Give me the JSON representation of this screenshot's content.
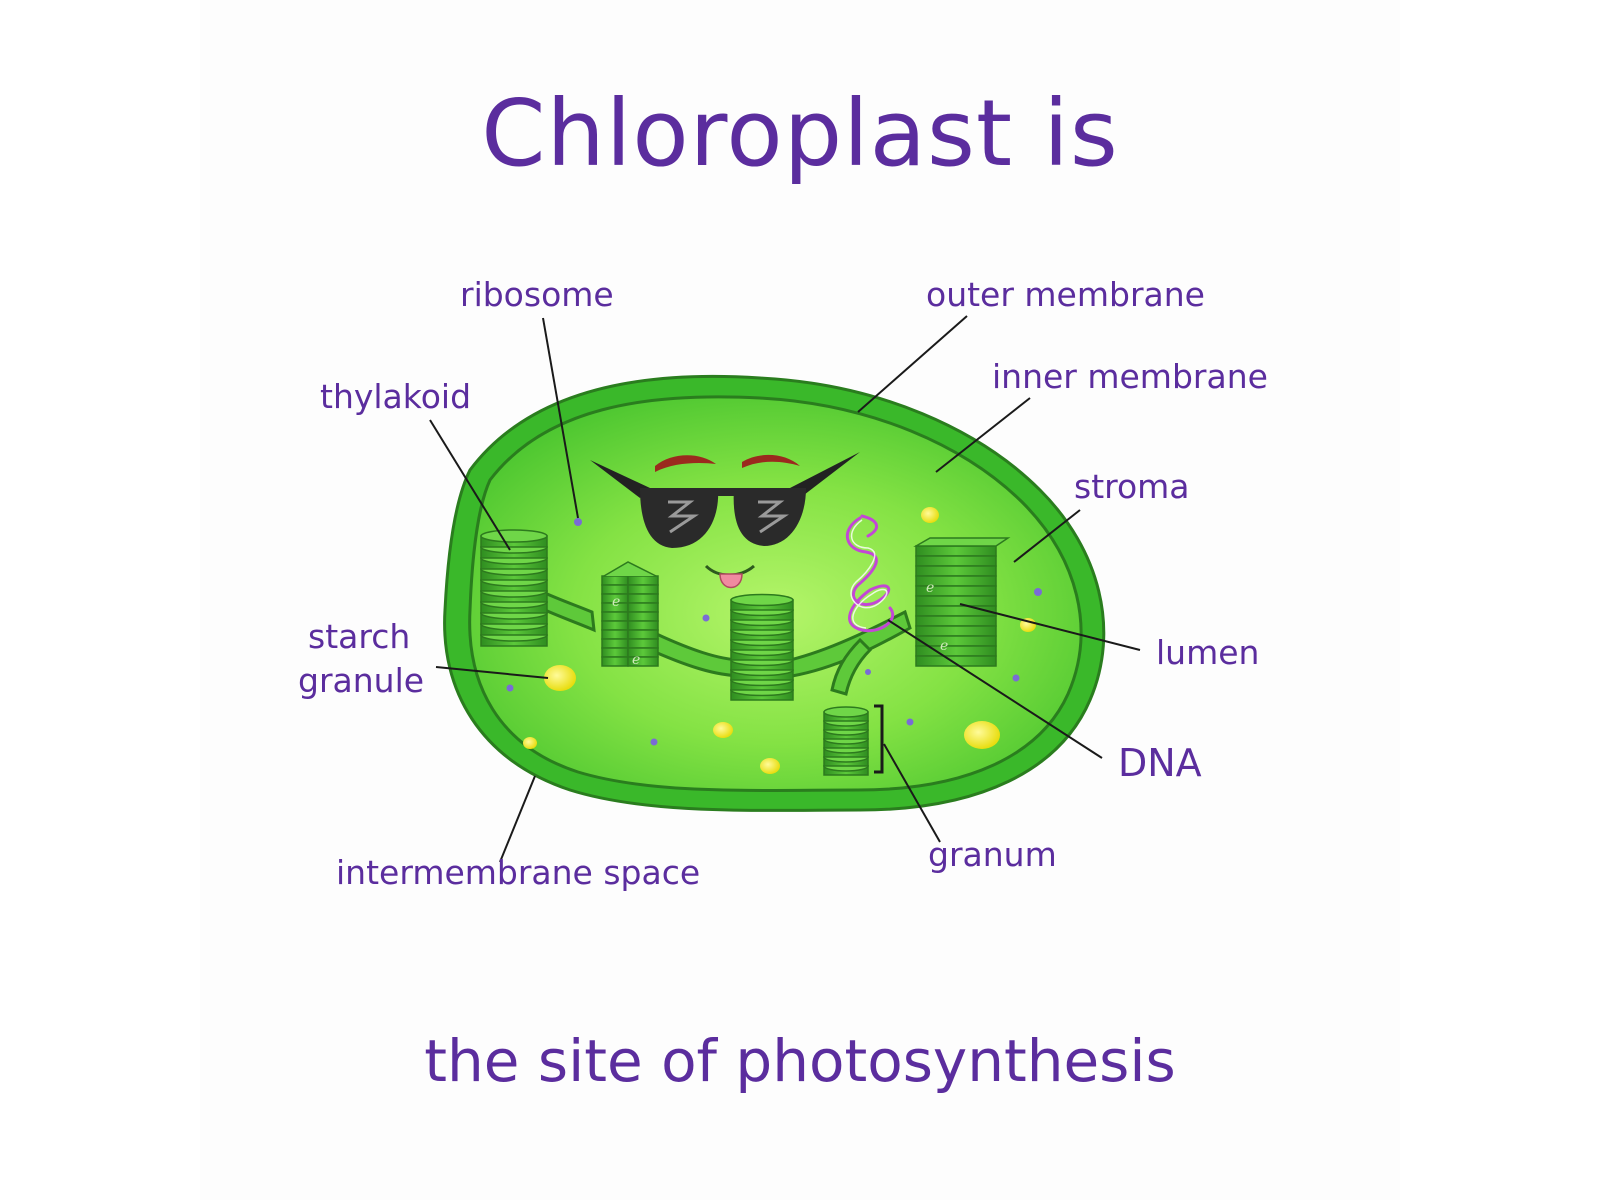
{
  "title": "Chloroplast is",
  "subtitle": "the site of photosynthesis",
  "labels": {
    "ribosome": "ribosome",
    "outer_membrane": "outer membrane",
    "inner_membrane": "inner membrane",
    "thylakoid": "thylakoid",
    "stroma": "stroma",
    "starch_granule_line1": "starch",
    "starch_granule_line2": "granule",
    "lumen": "lumen",
    "dna": "DNA",
    "granum": "granum",
    "intermembrane_space": "intermembrane space"
  },
  "thylakoid_letter": "e",
  "colors": {
    "text": "#5b2d9e",
    "outer_green": "#3fbf2c",
    "inner_green": "#7ee23e",
    "center_green": "#a9f05a",
    "membrane_line": "#2f7d22",
    "stack_green": "#4fb833",
    "stack_dark": "#2d7a1e",
    "starch": "#f4ee2a",
    "ribosome": "#7a6bd6",
    "dna": "#c347d6",
    "leader_line": "#1a1a1a"
  }
}
